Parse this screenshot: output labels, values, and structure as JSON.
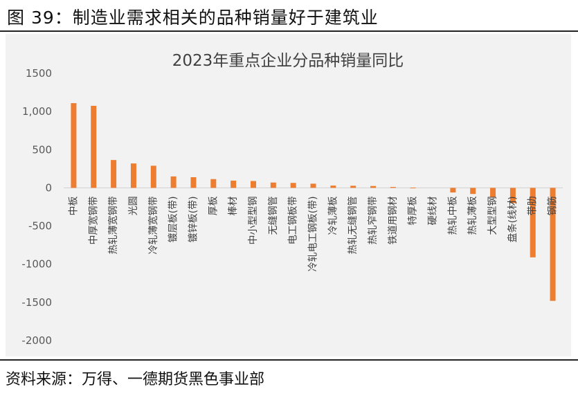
{
  "figure": {
    "title": "图 39：制造业需求相关的品种销量好于建筑业",
    "source": "资料来源：万得、一德期货黑色事业部"
  },
  "chart_data": {
    "type": "bar",
    "title": "2023年重点企业分品种销量同比",
    "xlabel": "",
    "ylabel": "",
    "ylim": [
      -2000,
      1500
    ],
    "yticks": [
      1500,
      1000,
      500,
      0,
      -500,
      -1000,
      -1500,
      -2000
    ],
    "ytick_labels": [
      "1500",
      "1,000",
      "500",
      "0",
      "-500",
      "-1000",
      "-1500",
      "-2000"
    ],
    "bar_color": "#ED7D31",
    "categories": [
      "中板",
      "中厚宽钢带",
      "热轧薄宽钢带",
      "光圆",
      "冷轧薄宽钢带",
      "镀层板(带)",
      "镀锌板(带)",
      "厚板",
      "棒材",
      "中小型型钢",
      "无缝钢管",
      "电工钢板带",
      "冷轧电工钢板(带)",
      "冷轧薄板",
      "热轧无缝钢管",
      "热轧窄钢带",
      "铁道用钢材",
      "特厚板",
      "硬线材",
      "热轧中板",
      "热轧薄板",
      "大型型钢",
      "盘条(线材)",
      "带肋",
      "钢筋"
    ],
    "values": [
      1110,
      1075,
      365,
      320,
      290,
      150,
      140,
      115,
      95,
      90,
      70,
      65,
      55,
      30,
      28,
      25,
      12,
      3,
      0,
      -60,
      -80,
      -120,
      -200,
      -910,
      -1480
    ]
  }
}
